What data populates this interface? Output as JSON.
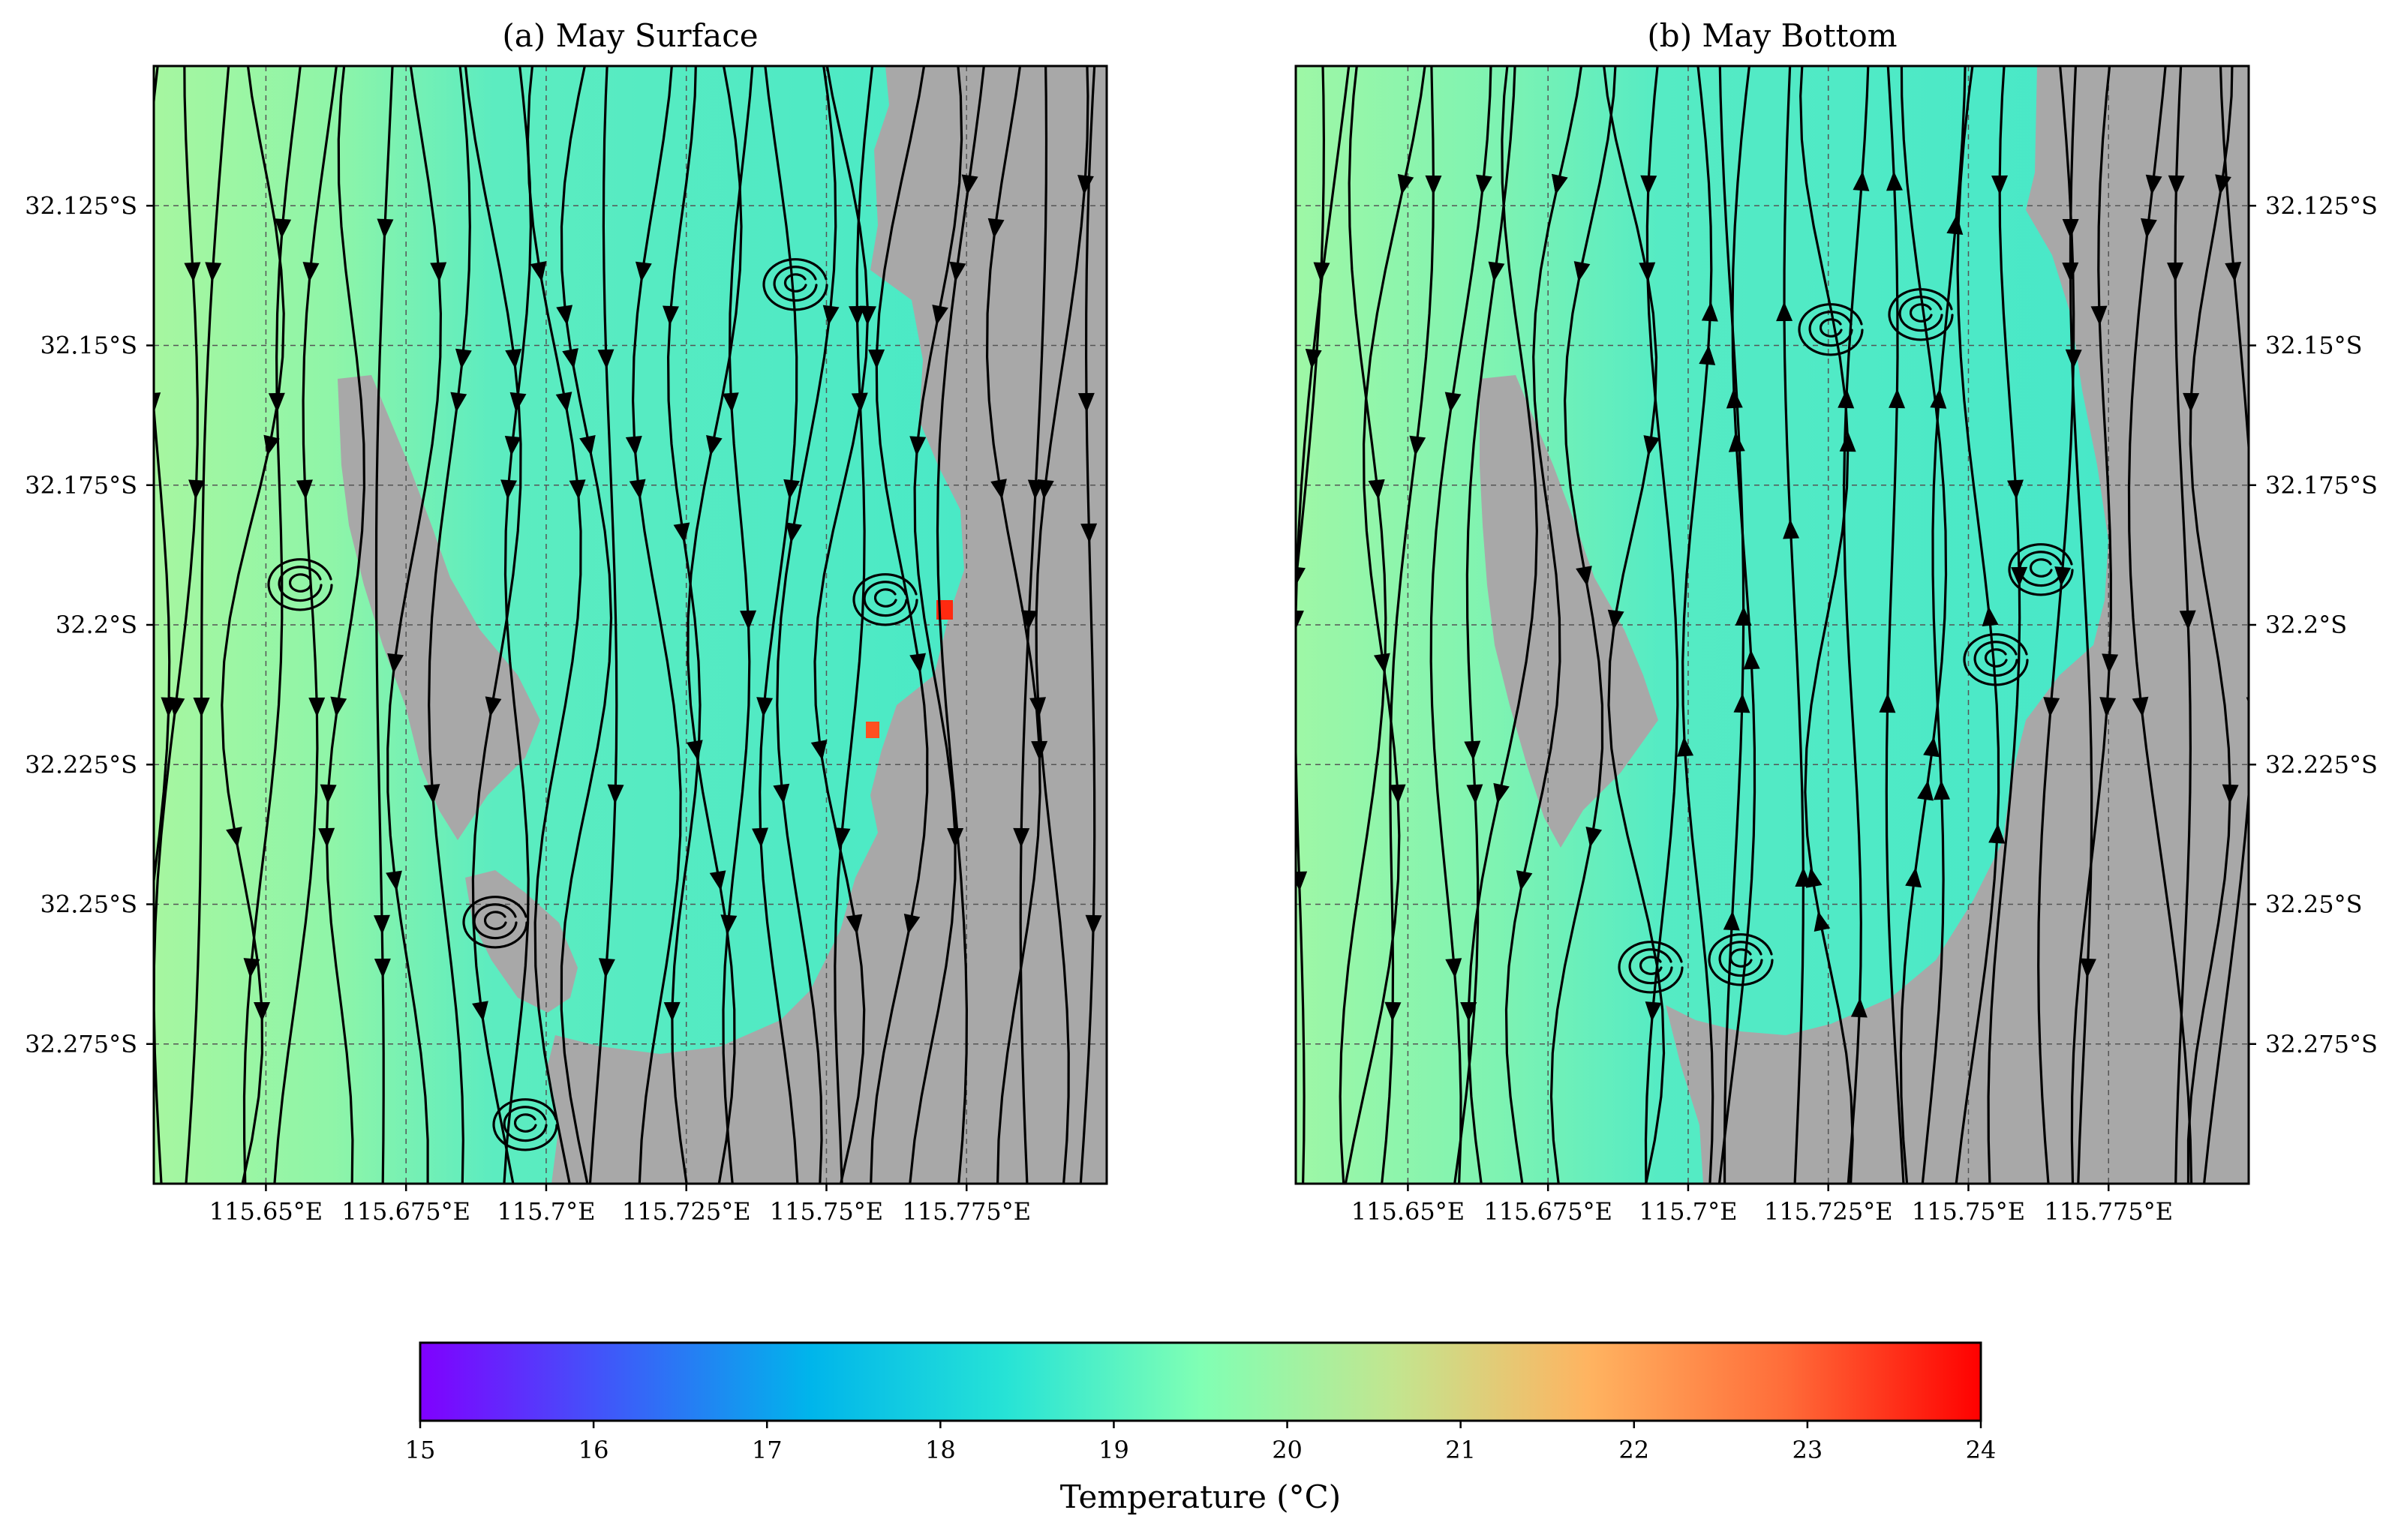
{
  "chart_data": [
    {
      "type": "streamplot",
      "title": "(a) May Surface",
      "xlim": [
        115.63,
        115.8
      ],
      "ylim": [
        -32.3,
        -32.1
      ],
      "x_ticks": [
        115.65,
        115.675,
        115.7,
        115.725,
        115.75,
        115.775
      ],
      "x_tick_labels": [
        "115.65°E",
        "115.675°E",
        "115.7°E",
        "115.725°E",
        "115.75°E",
        "115.775°E"
      ],
      "y_ticks": [
        -32.125,
        -32.15,
        -32.175,
        -32.2,
        -32.225,
        -32.25,
        -32.275
      ],
      "y_tick_labels": [
        "32.125°S",
        "32.15°S",
        "32.175°S",
        "32.2°S",
        "32.225°S",
        "32.25°S",
        "32.275°S"
      ],
      "y_tick_side": "left",
      "grid": true,
      "land_color": "#a8a8a8",
      "field": "temperature",
      "temperature_range_c": [
        18.5,
        24
      ],
      "hotspots_c": [
        23.5,
        23.0
      ],
      "flow": "southward along the western and eastern parts of the bay, eddies near the southeast shore"
    },
    {
      "type": "streamplot",
      "title": "(b) May Bottom",
      "xlim": [
        115.63,
        115.8
      ],
      "ylim": [
        -32.3,
        -32.1
      ],
      "x_ticks": [
        115.65,
        115.675,
        115.7,
        115.725,
        115.75,
        115.775
      ],
      "x_tick_labels": [
        "115.65°E",
        "115.675°E",
        "115.7°E",
        "115.725°E",
        "115.75°E",
        "115.775°E"
      ],
      "y_ticks": [
        -32.125,
        -32.15,
        -32.175,
        -32.2,
        -32.225,
        -32.25,
        -32.275
      ],
      "y_tick_labels": [
        "32.125°S",
        "32.15°S",
        "32.175°S",
        "32.2°S",
        "32.225°S",
        "32.25°S",
        "32.275°S"
      ],
      "y_tick_side": "right",
      "grid": true,
      "land_color": "#a8a8a8",
      "field": "temperature",
      "temperature_range_c": [
        18.5,
        20.5
      ],
      "flow": "southward on the west, northward return flow in the middle of the bay"
    }
  ],
  "colorbar": {
    "label": "Temperature (°C)",
    "min": 15,
    "max": 24,
    "ticks": [
      15,
      16,
      17,
      18,
      19,
      20,
      21,
      22,
      23,
      24
    ],
    "tick_labels": [
      "15",
      "16",
      "17",
      "18",
      "19",
      "20",
      "21",
      "22",
      "23",
      "24"
    ],
    "colormap": "rainbow",
    "stops": [
      "#8000ff",
      "#3d5bf9",
      "#00b5eb",
      "#26e3d6",
      "#80ffb4",
      "#c3e58f",
      "#ffb360",
      "#ff6c39",
      "#ff0000"
    ]
  }
}
